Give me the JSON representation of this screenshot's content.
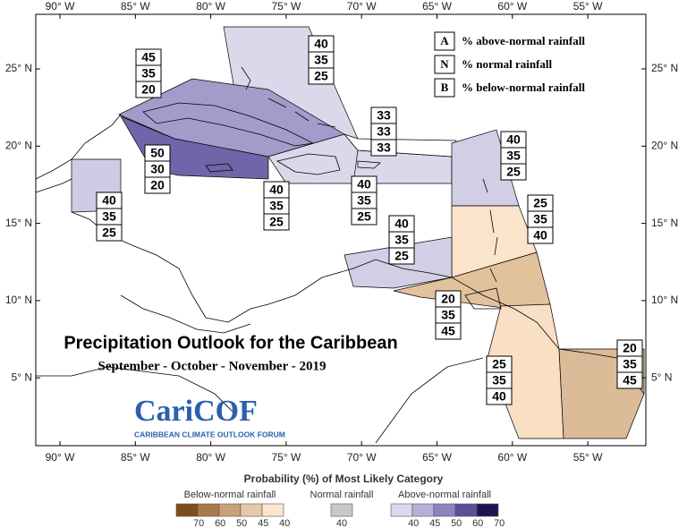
{
  "title": "Precipitation Outlook for the Caribbean",
  "subtitle": "September - October - November - 2019",
  "lon_ticks": [
    "90° W",
    "85° W",
    "80° W",
    "75° W",
    "70° W",
    "65° W",
    "60° W",
    "55° W"
  ],
  "lat_ticks": [
    "25° N",
    "20° N",
    "15° N",
    "10° N",
    "5° N"
  ],
  "key": [
    {
      "letter": "A",
      "text": "% above-normal rainfall"
    },
    {
      "letter": "N",
      "text": "% normal rainfall"
    },
    {
      "letter": "B",
      "text": "% below-normal rainfall"
    }
  ],
  "logo": {
    "name": "CariCOF",
    "tagline": "CARIBBEAN CLIMATE OUTLOOK FORUM"
  },
  "regions": [
    {
      "color": "#dcd8ec",
      "labels": [
        40,
        35,
        25
      ]
    },
    {
      "color": "#a29cca",
      "labels": [
        45,
        35,
        20
      ]
    },
    {
      "color": "#6e66a8",
      "labels": [
        50,
        30,
        20
      ]
    },
    {
      "color": "#cfcbe5",
      "labels": [
        40,
        35,
        25
      ]
    },
    {
      "color": "#dcd8ec",
      "labels": [
        40,
        35,
        25
      ]
    },
    {
      "color": "#dcd8ec",
      "labels": [
        40,
        35,
        25
      ]
    },
    {
      "color": "#ffffff",
      "labels": [
        33,
        33,
        33
      ]
    },
    {
      "color": "#d2cee6",
      "labels": [
        40,
        35,
        25
      ]
    },
    {
      "color": "#fbe4cc",
      "labels": [
        25,
        35,
        40
      ]
    },
    {
      "color": "#d2cee6",
      "labels": [
        40,
        35,
        25
      ]
    },
    {
      "color": "#e2c19d",
      "labels": [
        20,
        35,
        45
      ]
    },
    {
      "color": "#f9dfc4",
      "labels": [
        25,
        35,
        40
      ]
    },
    {
      "color": "#dcbb98",
      "labels": [
        20,
        35,
        45
      ]
    }
  ],
  "colorbar": {
    "title": "Probability (%) of Most Likely Category",
    "groups": [
      {
        "name": "Below-normal rainfall",
        "colors": [
          "#7b4f1c",
          "#a9794b",
          "#c9a079",
          "#e7c9a8",
          "#f9e5d0"
        ],
        "labels": [
          70,
          60,
          50,
          45,
          40
        ]
      },
      {
        "name": "Normal rainfall",
        "colors": [
          "#c8c8c8"
        ],
        "labels": [
          40
        ]
      },
      {
        "name": "Above-normal rainfall",
        "colors": [
          "#dcd8ee",
          "#b5b0d8",
          "#8c85c0",
          "#5a519a",
          "#1e1450"
        ],
        "labels": [
          40,
          45,
          50,
          60,
          70
        ]
      }
    ]
  }
}
